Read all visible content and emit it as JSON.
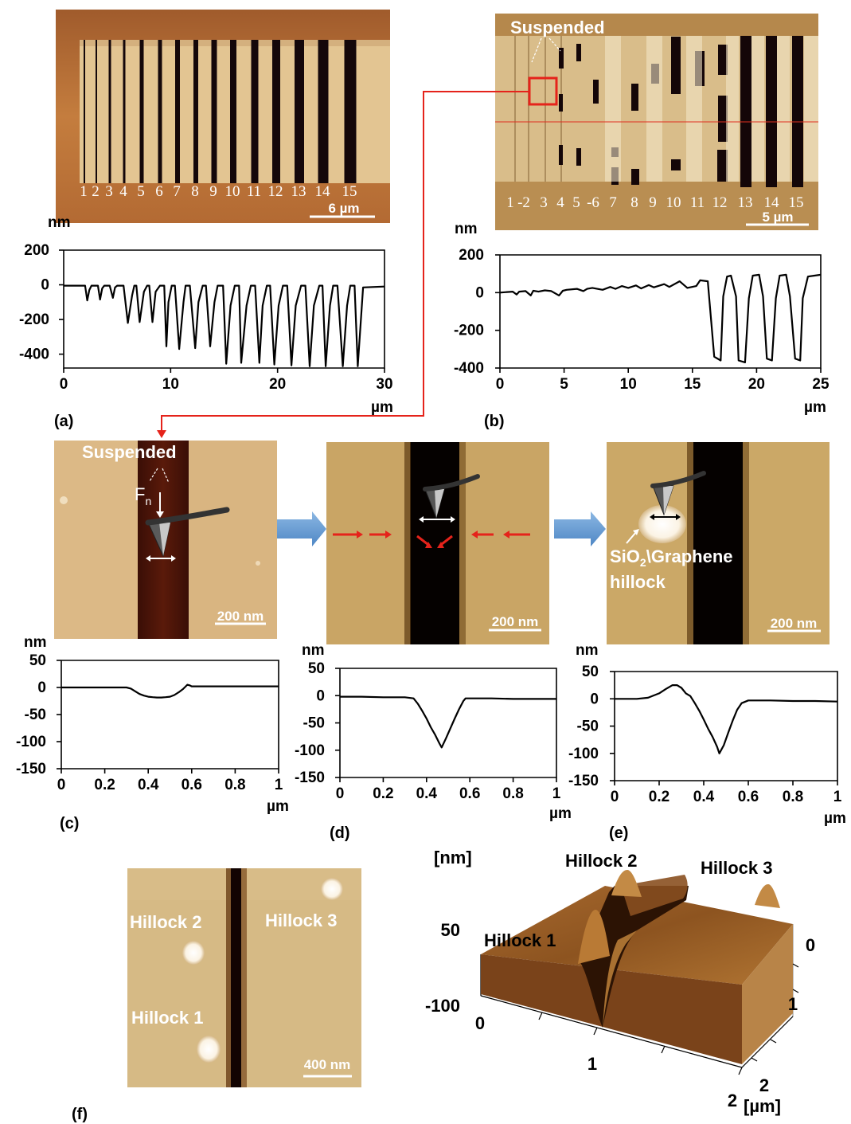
{
  "figure": {
    "panel_labels": {
      "a": "(a)",
      "b": "(b)",
      "c": "(c)",
      "d": "(d)",
      "e": "(e)",
      "f": "(f)"
    },
    "panel_a": {
      "trench_numbers": [
        "1",
        "2",
        "3",
        "4",
        "5",
        "6",
        "7",
        "8",
        "9",
        "10",
        "11",
        "12",
        "13",
        "14",
        "15"
      ],
      "scale_bar": "6 µm"
    },
    "panel_b": {
      "label_suspended": "Suspended",
      "trench_numbers": [
        "1",
        "-2",
        "3",
        "4",
        "5",
        "-6",
        "7",
        "8",
        "9",
        "10",
        "11",
        "12",
        "13",
        "14",
        "15"
      ],
      "scale_bar": "5 µm"
    },
    "panel_c": {
      "label_suspended": "Suspended",
      "force_label": "F",
      "force_subscript": "n",
      "scale_bar": "200 nm"
    },
    "panel_d": {
      "scale_bar": "200 nm"
    },
    "panel_e": {
      "hillock_label_line1": "SiO",
      "hillock_label_sub": "2",
      "hillock_label_rest": "\\Graphene",
      "hillock_label_line2": "hillock",
      "scale_bar": "200 nm"
    },
    "panel_f": {
      "hillock_labels": [
        "Hillock 2",
        "Hillock 3",
        "Hillock 1"
      ],
      "scale_bar": "400 nm"
    },
    "panel_3d": {
      "z_unit": "[nm]",
      "z_ticks": [
        "50",
        "-100"
      ],
      "x_ticks": [
        "0",
        "1",
        "2"
      ],
      "y_ticks": [
        "0",
        "1",
        "2"
      ],
      "xy_unit": "[µm]",
      "hillock_labels": [
        "Hillock 1",
        "Hillock 2",
        "Hillock 3"
      ]
    }
  },
  "chart_data": [
    {
      "id": "a",
      "type": "line",
      "ylabel": "nm",
      "xlabel": "µm",
      "xlim": [
        0,
        30
      ],
      "ylim": [
        -480,
        200
      ],
      "xticks": [
        0,
        10,
        20,
        30
      ],
      "yticks": [
        200,
        0,
        -200,
        -400
      ],
      "series": [
        {
          "x": [
            0,
            2.0,
            2.2,
            2.4,
            2.6,
            3.2,
            3.4,
            3.6,
            3.8,
            4.3,
            4.6,
            4.8,
            5.0,
            5.6,
            6.0,
            6.4,
            6.6,
            6.8,
            7.1,
            7.5,
            7.8,
            8.0,
            8.3,
            8.6,
            9.0,
            9.4,
            9.6,
            9.8,
            10.1,
            10.4,
            10.8,
            11.2,
            11.4,
            11.8,
            12.3,
            12.6,
            13.0,
            13.3,
            13.7,
            14.1,
            14.4,
            14.9,
            15.2,
            15.6,
            16.0,
            16.4,
            16.6,
            17.1,
            17.5,
            17.9,
            18.3,
            18.6,
            19.0,
            19.3,
            19.7,
            20.1,
            20.5,
            20.9,
            21.3,
            21.7,
            22.2,
            22.6,
            23.0,
            23.4,
            23.9,
            24.2,
            24.5,
            24.9,
            25.2,
            25.6,
            26.1,
            26.5,
            26.8,
            27.2,
            27.5,
            28.0,
            30
          ],
          "y": [
            -5,
            -5,
            -90,
            -30,
            -5,
            -5,
            -85,
            -20,
            -5,
            -5,
            -75,
            -15,
            -5,
            -5,
            -220,
            -60,
            -5,
            -5,
            -215,
            -40,
            -5,
            -5,
            -215,
            -40,
            -5,
            -5,
            -355,
            -100,
            -5,
            -5,
            -370,
            -100,
            -5,
            -5,
            -365,
            -100,
            -5,
            -5,
            -355,
            -100,
            -5,
            -5,
            -455,
            -120,
            -5,
            -5,
            -450,
            -120,
            -5,
            -5,
            -450,
            -120,
            -5,
            -5,
            -460,
            -120,
            -5,
            -5,
            -465,
            -120,
            -5,
            -5,
            -470,
            -120,
            -5,
            -5,
            -470,
            -120,
            -5,
            -5,
            -470,
            -120,
            -5,
            -5,
            -470,
            -15,
            -10
          ]
        }
      ]
    },
    {
      "id": "b",
      "type": "line",
      "ylabel": "nm",
      "xlabel": "µm",
      "xlim": [
        0,
        25
      ],
      "ylim": [
        -400,
        200
      ],
      "xticks": [
        0,
        5,
        10,
        15,
        20,
        25
      ],
      "yticks": [
        200,
        0,
        -200,
        -400
      ],
      "series": [
        {
          "x": [
            0,
            1.0,
            1.3,
            1.5,
            2.0,
            2.4,
            2.6,
            3.0,
            3.5,
            4.0,
            4.6,
            4.9,
            5.2,
            6.0,
            6.5,
            6.8,
            7.2,
            8.0,
            8.6,
            9.0,
            9.5,
            10.0,
            10.6,
            11.0,
            11.6,
            12.0,
            12.8,
            13.2,
            14.0,
            14.6,
            15.3,
            15.6,
            16.2,
            16.7,
            17.2,
            17.4,
            17.7,
            18.0,
            18.4,
            18.6,
            19.1,
            19.4,
            19.7,
            20.2,
            20.5,
            20.8,
            21.2,
            21.5,
            21.8,
            22.3,
            22.6,
            23.0,
            23.4,
            23.6,
            24.0,
            25.0
          ],
          "y": [
            0,
            5,
            -10,
            5,
            8,
            -15,
            10,
            5,
            12,
            8,
            -15,
            10,
            15,
            20,
            8,
            20,
            25,
            15,
            30,
            20,
            35,
            25,
            38,
            22,
            40,
            28,
            45,
            30,
            60,
            25,
            35,
            65,
            60,
            -340,
            -360,
            -20,
            85,
            90,
            -20,
            -360,
            -370,
            -30,
            90,
            95,
            -20,
            -350,
            -360,
            -30,
            90,
            95,
            -20,
            -350,
            -360,
            -30,
            85,
            95
          ]
        }
      ]
    },
    {
      "id": "c",
      "type": "line",
      "ylabel": "nm",
      "xlabel": "µm",
      "xlim": [
        0,
        1
      ],
      "ylim": [
        -150,
        50
      ],
      "xticks": [
        0,
        0.2,
        0.4,
        0.6,
        0.8,
        1
      ],
      "yticks": [
        50,
        0,
        -50,
        -100,
        -150
      ],
      "series": [
        {
          "x": [
            0,
            0.3,
            0.32,
            0.34,
            0.36,
            0.38,
            0.4,
            0.42,
            0.44,
            0.46,
            0.48,
            0.5,
            0.52,
            0.54,
            0.56,
            0.58,
            0.59,
            0.6,
            0.65,
            1.0
          ],
          "y": [
            0,
            0,
            -2,
            -7,
            -12,
            -15,
            -17,
            -18,
            -18.5,
            -18.5,
            -18,
            -17,
            -14,
            -9,
            -3,
            5,
            4,
            2,
            2,
            2
          ]
        }
      ]
    },
    {
      "id": "d",
      "type": "line",
      "ylabel": "nm",
      "xlabel": "µm",
      "xlim": [
        0,
        1
      ],
      "ylim": [
        -150,
        50
      ],
      "xticks": [
        0,
        0.2,
        0.4,
        0.6,
        0.8,
        1
      ],
      "yticks": [
        50,
        0,
        -50,
        -100,
        -150
      ],
      "series": [
        {
          "x": [
            0,
            0.1,
            0.2,
            0.3,
            0.34,
            0.36,
            0.38,
            0.4,
            0.42,
            0.44,
            0.46,
            0.47,
            0.49,
            0.51,
            0.53,
            0.55,
            0.57,
            0.58,
            0.6,
            0.7,
            0.8,
            0.9,
            1.0
          ],
          "y": [
            -2,
            -2,
            -3,
            -3,
            -5,
            -15,
            -28,
            -42,
            -58,
            -72,
            -88,
            -95,
            -78,
            -60,
            -42,
            -25,
            -10,
            -5,
            -5,
            -5,
            -6,
            -6,
            -6
          ]
        }
      ]
    },
    {
      "id": "e",
      "type": "line",
      "ylabel": "nm",
      "xlabel": "µm",
      "xlim": [
        0,
        1
      ],
      "ylim": [
        -150,
        50
      ],
      "xticks": [
        0,
        0.2,
        0.4,
        0.6,
        0.8,
        1
      ],
      "yticks": [
        50,
        0,
        -50,
        -100,
        -150
      ],
      "series": [
        {
          "x": [
            0,
            0.1,
            0.15,
            0.2,
            0.23,
            0.26,
            0.28,
            0.3,
            0.32,
            0.34,
            0.36,
            0.38,
            0.4,
            0.42,
            0.44,
            0.46,
            0.47,
            0.49,
            0.51,
            0.53,
            0.55,
            0.57,
            0.6,
            0.7,
            0.8,
            0.9,
            1.0
          ],
          "y": [
            0,
            0,
            2,
            10,
            18,
            25,
            25,
            20,
            10,
            5,
            -8,
            -22,
            -38,
            -55,
            -70,
            -88,
            -100,
            -85,
            -62,
            -40,
            -20,
            -8,
            -3,
            -3,
            -4,
            -4,
            -5
          ]
        }
      ]
    }
  ]
}
